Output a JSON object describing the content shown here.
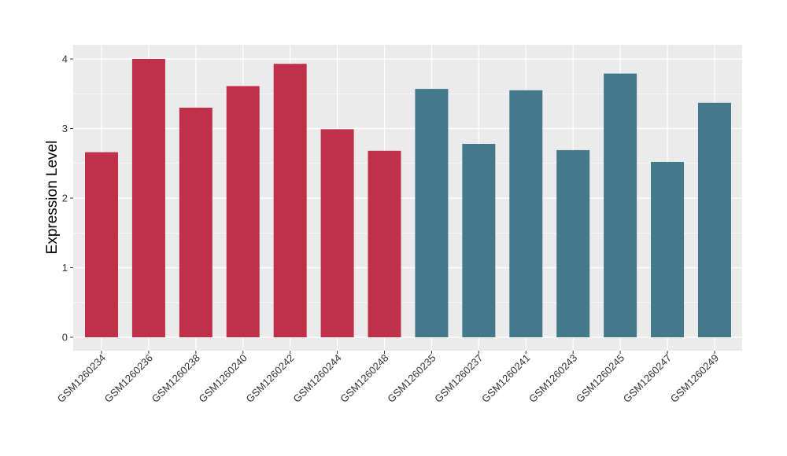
{
  "chart_data": {
    "type": "bar",
    "title": "",
    "xlabel": "",
    "ylabel": "Expression Level",
    "ylim": [
      0,
      4
    ],
    "yticks": [
      0,
      1,
      2,
      3,
      4
    ],
    "grid": true,
    "legend": "none",
    "categories": [
      "GSM1260234",
      "GSM1260236",
      "GSM1260238",
      "GSM1260240",
      "GSM1260242",
      "GSM1260244",
      "GSM1260248",
      "GSM1260235",
      "GSM1260237",
      "GSM1260241",
      "GSM1260243",
      "GSM1260245",
      "GSM1260247",
      "GSM1260249"
    ],
    "values": [
      2.66,
      4.0,
      3.3,
      3.61,
      3.93,
      2.99,
      2.68,
      3.57,
      2.78,
      3.55,
      2.69,
      3.79,
      2.52,
      3.37
    ],
    "bar_colors": [
      "#c03049",
      "#c03049",
      "#c03049",
      "#c03049",
      "#c03049",
      "#c03049",
      "#c03049",
      "#437a8b",
      "#437a8b",
      "#437a8b",
      "#437a8b",
      "#437a8b",
      "#437a8b",
      "#437a8b"
    ],
    "panel_background": "#ebebeb",
    "grid_color": "#ffffff"
  }
}
